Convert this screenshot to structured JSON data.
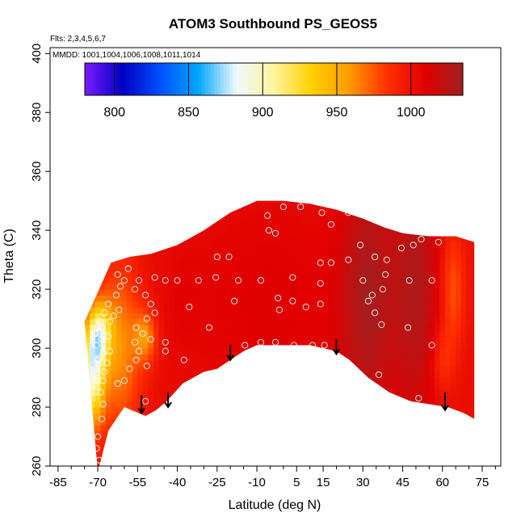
{
  "chart_data": {
    "type": "heatmap",
    "title": "ATOM3 Southbound PS_GEOS5",
    "flights_label": "Flts: 2,3,4,5,6,7",
    "dates_label": "MMDD: 1001,1004,1006,1008,1011,1014",
    "xlabel": "Latitude (deg N)",
    "ylabel": "Theta (C)",
    "xlim": [
      -88,
      82
    ],
    "ylim": [
      260,
      402
    ],
    "x_ticks": [
      -85,
      -70,
      -55,
      -40,
      -25,
      -10,
      5,
      15,
      30,
      45,
      60,
      75
    ],
    "y_ticks": [
      260,
      280,
      300,
      320,
      340,
      360,
      380,
      400
    ],
    "colorbar": {
      "min": 780,
      "max": 1035,
      "ticks": [
        800,
        850,
        900,
        950,
        1000
      ],
      "colors": [
        "#7a1bff",
        "#0000c0",
        "#0050ff",
        "#00a8ff",
        "#eef8ff",
        "#fff5a0",
        "#ffd000",
        "#ff9a00",
        "#ff3000",
        "#e00000",
        "#a02020"
      ]
    },
    "field": {
      "lower_boundary": [
        [
          -70,
          258
        ],
        [
          -66,
          272
        ],
        [
          -60,
          280
        ],
        [
          -52,
          277
        ],
        [
          -48,
          279
        ],
        [
          -44,
          282
        ],
        [
          -38,
          288
        ],
        [
          -30,
          292
        ],
        [
          -25,
          293
        ],
        [
          -15,
          299
        ],
        [
          -10,
          301
        ],
        [
          0,
          301
        ],
        [
          10,
          301
        ],
        [
          20,
          299
        ],
        [
          25,
          296
        ],
        [
          32,
          290
        ],
        [
          40,
          285
        ],
        [
          48,
          282
        ],
        [
          55,
          281
        ],
        [
          62,
          280
        ],
        [
          68,
          278
        ],
        [
          72,
          276
        ]
      ],
      "upper_boundary": [
        [
          -75,
          309
        ],
        [
          -65,
          329
        ],
        [
          -58,
          331
        ],
        [
          -50,
          332
        ],
        [
          -40,
          335
        ],
        [
          -30,
          340
        ],
        [
          -20,
          346
        ],
        [
          -10,
          350
        ],
        [
          0,
          350
        ],
        [
          10,
          349
        ],
        [
          20,
          347
        ],
        [
          30,
          344
        ],
        [
          38,
          341
        ],
        [
          45,
          339
        ],
        [
          55,
          338
        ],
        [
          65,
          338
        ],
        [
          72,
          336
        ]
      ],
      "blobs": [
        {
          "x": 32,
          "y": 318,
          "value": 1030,
          "sx": 7,
          "sy": 30
        },
        {
          "x": 50,
          "y": 320,
          "value": 1028,
          "sx": 6,
          "sy": 30
        },
        {
          "x": -5,
          "y": 315,
          "value": 1010,
          "sx": 25,
          "sy": 30
        },
        {
          "x": 64,
          "y": 320,
          "value": 975,
          "sx": 3,
          "sy": 14
        },
        {
          "x": 60,
          "y": 296,
          "value": 985,
          "sx": 3,
          "sy": 8
        },
        {
          "x": -62,
          "y": 300,
          "value": 960,
          "sx": 6,
          "sy": 20
        },
        {
          "x": -72,
          "y": 292,
          "value": 900,
          "sx": 3,
          "sy": 12
        },
        {
          "x": -69,
          "y": 305,
          "value": 935,
          "sx": 3,
          "sy": 7
        },
        {
          "x": -52,
          "y": 304,
          "value": 965,
          "sx": 3,
          "sy": 6
        },
        {
          "x": -38,
          "y": 318,
          "value": 1005,
          "sx": 6,
          "sy": 14
        }
      ]
    },
    "sample_points": [
      [
        -69.5,
        262
      ],
      [
        -70.5,
        266
      ],
      [
        -70,
        270
      ],
      [
        -68.5,
        276
      ],
      [
        -68,
        281
      ],
      [
        -69,
        285
      ],
      [
        -68,
        289
      ],
      [
        -70.5,
        289
      ],
      [
        -67.5,
        292
      ],
      [
        -66.5,
        295
      ],
      [
        -70,
        296
      ],
      [
        -68,
        298
      ],
      [
        -65.5,
        299
      ],
      [
        -70.5,
        301
      ],
      [
        -68.5,
        303
      ],
      [
        -66,
        304
      ],
      [
        -71,
        305
      ],
      [
        -68.5,
        307
      ],
      [
        -65.5,
        309
      ],
      [
        -69,
        309
      ],
      [
        -64,
        311
      ],
      [
        -67.5,
        312
      ],
      [
        -62,
        313
      ],
      [
        -66,
        315
      ],
      [
        -63,
        318
      ],
      [
        -61.5,
        321
      ],
      [
        -60,
        323
      ],
      [
        -62.5,
        325
      ],
      [
        -58.5,
        327
      ],
      [
        -62.5,
        288
      ],
      [
        -60,
        289
      ],
      [
        -58,
        293
      ],
      [
        -55.5,
        296
      ],
      [
        -54.5,
        299
      ],
      [
        -56,
        302
      ],
      [
        -53,
        305
      ],
      [
        -55.5,
        307
      ],
      [
        -51.5,
        310
      ],
      [
        -48.5,
        312
      ],
      [
        -50,
        315
      ],
      [
        -52,
        318
      ],
      [
        -56,
        320
      ],
      [
        -54.5,
        323
      ],
      [
        -48.5,
        324
      ],
      [
        -44.5,
        323
      ],
      [
        -40,
        323
      ],
      [
        -35.5,
        314
      ],
      [
        -37.5,
        296
      ],
      [
        -44.5,
        299
      ],
      [
        -44.5,
        302
      ],
      [
        -50,
        303
      ],
      [
        -51.5,
        294
      ],
      [
        -52,
        282
      ],
      [
        -46,
        278
      ],
      [
        -42.5,
        281
      ],
      [
        -32,
        323
      ],
      [
        -28,
        307
      ],
      [
        -25.5,
        324
      ],
      [
        -25,
        331
      ],
      [
        -20.5,
        331
      ],
      [
        -18.5,
        316
      ],
      [
        -17,
        323
      ],
      [
        -14.5,
        301
      ],
      [
        -8.5,
        302
      ],
      [
        -3,
        302
      ],
      [
        4,
        301
      ],
      [
        11,
        301
      ],
      [
        15.5,
        301
      ],
      [
        -8.5,
        323
      ],
      [
        -2,
        317
      ],
      [
        3.5,
        316
      ],
      [
        8.5,
        314
      ],
      [
        14,
        315
      ],
      [
        14,
        322
      ],
      [
        3.5,
        324
      ],
      [
        -1.5,
        313
      ],
      [
        -5.5,
        340
      ],
      [
        -3,
        339
      ],
      [
        0,
        348
      ],
      [
        6.5,
        348
      ],
      [
        14.5,
        346
      ],
      [
        18,
        342
      ],
      [
        -6,
        345
      ],
      [
        24.5,
        346
      ],
      [
        14,
        329
      ],
      [
        18,
        329
      ],
      [
        24.5,
        330
      ],
      [
        29,
        335
      ],
      [
        30,
        323
      ],
      [
        32,
        316
      ],
      [
        34.5,
        312
      ],
      [
        37.5,
        320
      ],
      [
        38.5,
        325
      ],
      [
        39,
        330
      ],
      [
        34.5,
        331
      ],
      [
        37,
        308
      ],
      [
        36,
        291
      ],
      [
        47,
        307
      ],
      [
        47.5,
        323
      ],
      [
        49,
        335
      ],
      [
        52,
        337
      ],
      [
        58.5,
        336
      ],
      [
        56,
        323
      ],
      [
        56,
        301
      ],
      [
        51,
        283
      ],
      [
        44.5,
        334
      ],
      [
        33.5,
        318
      ],
      [
        60,
        339
      ]
    ],
    "arrows": [
      {
        "x": -53.5,
        "y_from": 284,
        "y_to": 278
      },
      {
        "x": -43.5,
        "y_from": 285,
        "y_to": 280
      },
      {
        "x": -20,
        "y_from": 301,
        "y_to": 296
      },
      {
        "x": 20,
        "y_from": 303,
        "y_to": 298
      },
      {
        "x": 61,
        "y_from": 285,
        "y_to": 279
      }
    ]
  }
}
